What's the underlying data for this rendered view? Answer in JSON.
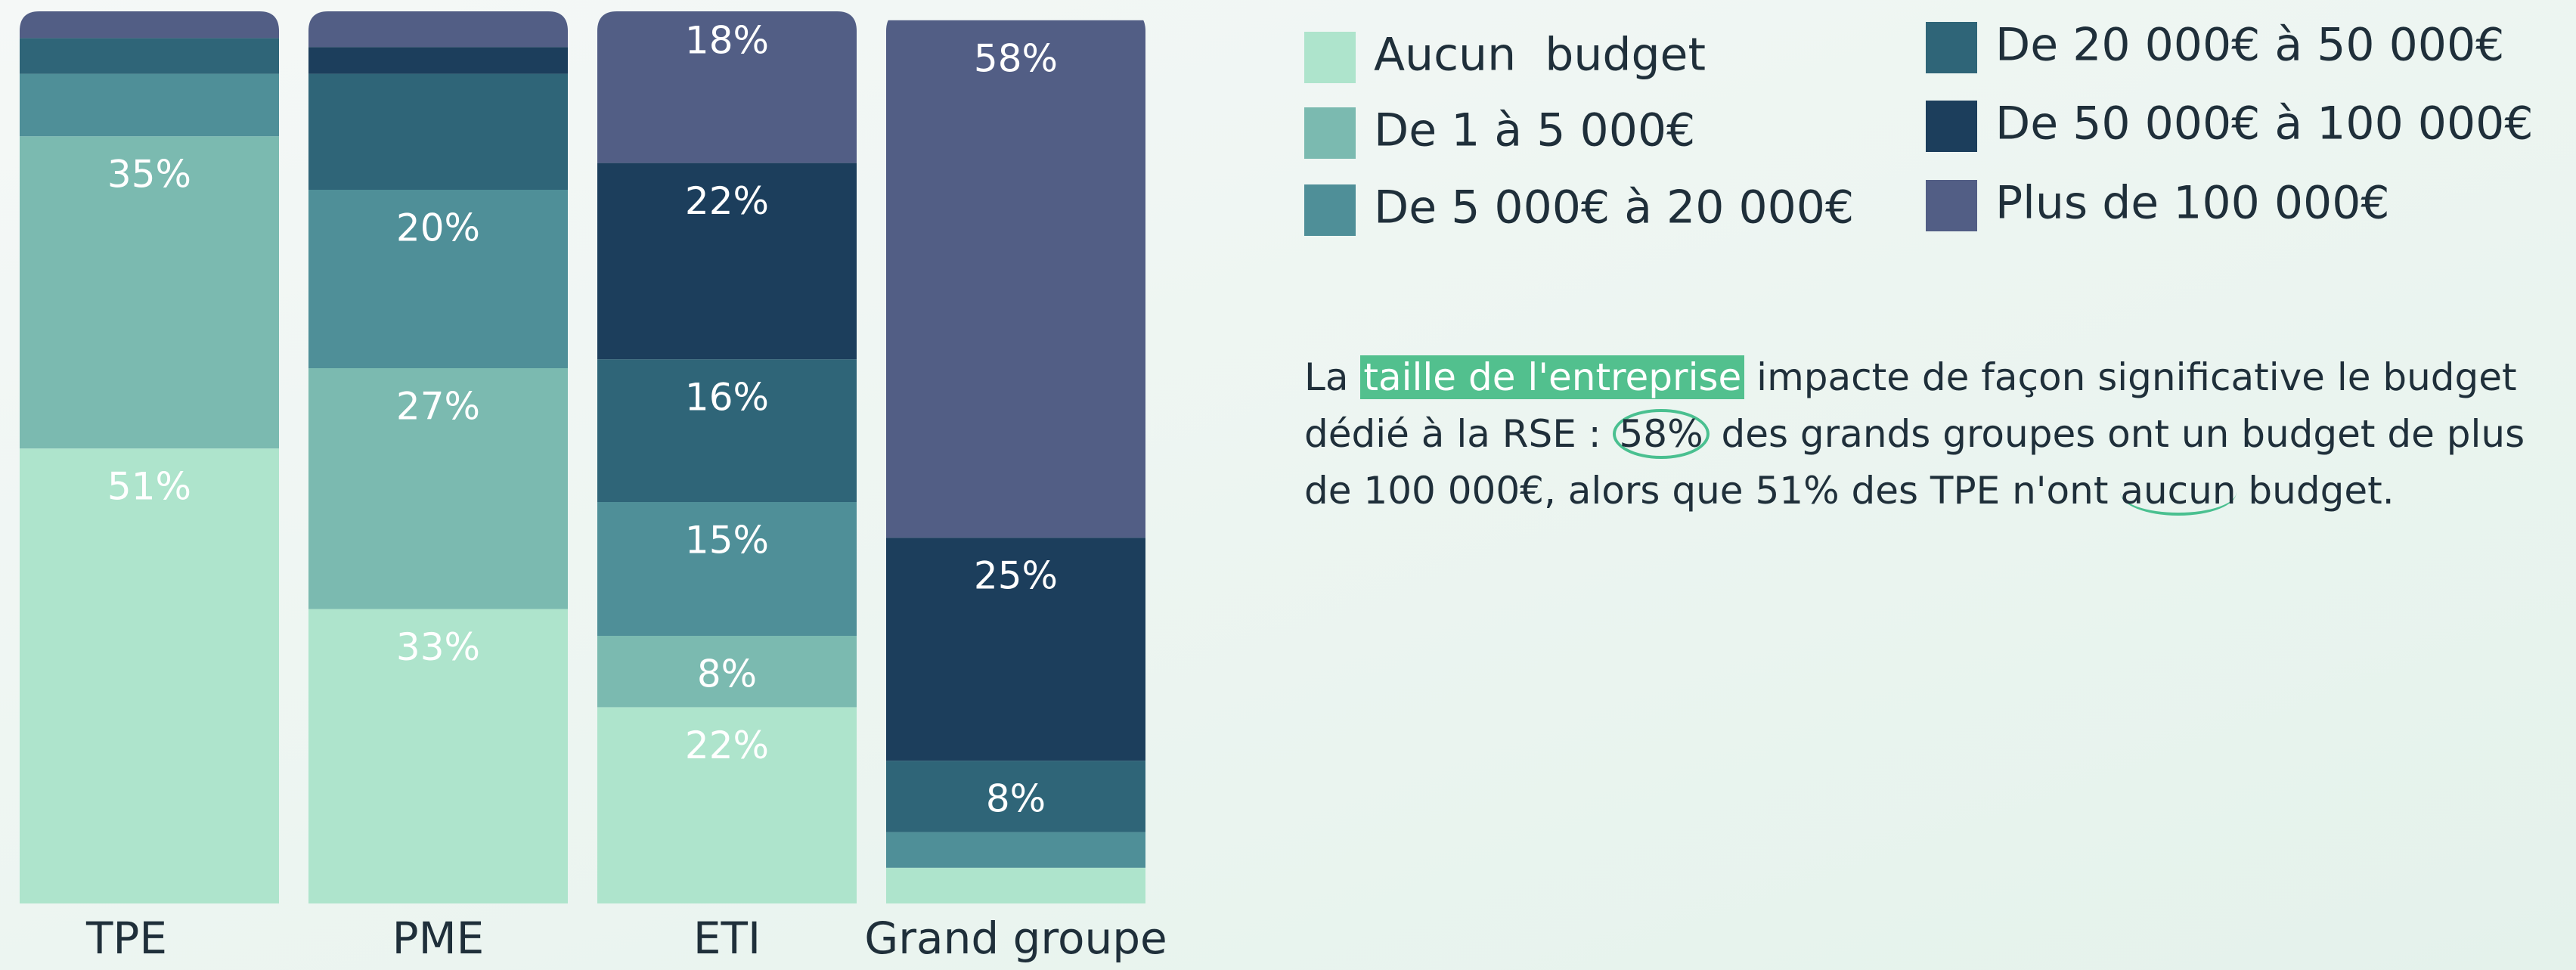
{
  "chart_data": {
    "type": "stacked_bar",
    "categories": [
      "TPE",
      "PME",
      "ETI",
      "Grand groupe"
    ],
    "ylim": [
      0,
      100
    ],
    "series": [
      {
        "name": "Aucun  budget",
        "color": "#aee4cc",
        "values": [
          51,
          33,
          22,
          4
        ],
        "value_labels": [
          "51%",
          "33%",
          "22%",
          null
        ]
      },
      {
        "name": "De 1 à 5 000€",
        "color": "#7bbab0",
        "values": [
          35,
          27,
          8,
          0
        ],
        "value_labels": [
          "35%",
          "27%",
          "8%",
          null
        ]
      },
      {
        "name": "De 5 000€ à 20 000€",
        "color": "#4f8f98",
        "values": [
          7,
          20,
          15,
          4
        ],
        "value_labels": [
          null,
          "20%",
          "15%",
          null
        ]
      },
      {
        "name": "De 20 000€ à 50 000€",
        "color": "#2f6578",
        "values": [
          4,
          13,
          16,
          8
        ],
        "value_labels": [
          null,
          null,
          "16%",
          "8%"
        ]
      },
      {
        "name": "De 50 000€ à 100 000€",
        "color": "#1c3e5c",
        "values": [
          0,
          3,
          22,
          25
        ],
        "value_labels": [
          null,
          null,
          "22%",
          "25%"
        ]
      },
      {
        "name": "Plus de 100 000€",
        "color": "#525e85",
        "values": [
          3,
          4,
          18,
          58
        ],
        "value_labels": [
          null,
          null,
          "18%",
          "58%"
        ]
      }
    ]
  },
  "commentary": {
    "parts": [
      "La ",
      "taille de l'entreprise",
      " impacte de façon significative le budget dédié à la RSE : ",
      "58%",
      " des grands groupes ont un budget de plus de 100 000€, alors que 51% des TPE n'ont ",
      "aucun",
      " budget."
    ]
  }
}
